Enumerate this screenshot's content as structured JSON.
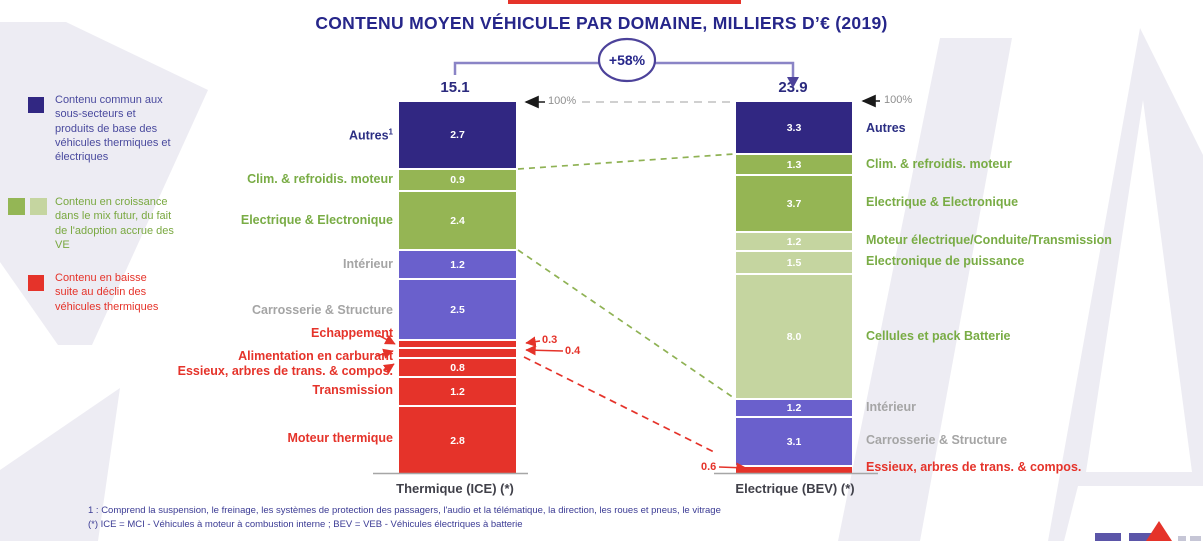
{
  "title": "CONTENU MOYEN VÉHICULE PAR DOMAINE, MILLIERS D’€ (2019)",
  "growth_badge": "+58%",
  "axis_marker": "100%",
  "legend": {
    "items": [
      {
        "colors": [
          "#312782"
        ],
        "text_color": "#4A4A9E",
        "text": "Contenu commun aux sous-secteurs et produits de base des véhicules thermiques et électriques"
      },
      {
        "colors": [
          "#94B655",
          "#C5D5A0"
        ],
        "text_color": "#79A840",
        "text": "Contenu en croissance dans le mix futur, du fait de l'adoption accrue des VE"
      },
      {
        "colors": [
          "#E5332A"
        ],
        "text_color": "#E5332A",
        "text": "Contenu en baisse suite au déclin des véhicules thermiques"
      }
    ]
  },
  "footnotes": [
    "1 : Comprend la suspension, le freinage, les systèmes de protection des passagers, l'audio et la télématique, la direction, les roues et pneus, le vitrage",
    "(*) ICE = MCI - Véhicules à moteur à combustion interne ; BEV = VEB - Véhicules électriques à batterie"
  ],
  "chart_data": {
    "type": "bar",
    "subtype": "stacked-comparison-normalized-100pct",
    "title": "CONTENU MOYEN VÉHICULE PAR DOMAINE, MILLIERS D’€ (2019)",
    "unit": "milliers d'euros",
    "growth_between_bars": "+58%",
    "colors": {
      "common": "#312782",
      "growth": "#95B554",
      "growth_light": "#C5D5A0",
      "neutral": "#6A60CC",
      "decline": "#E5332A"
    },
    "bars": [
      {
        "name": "Thermique (ICE) (*)",
        "total": "15.1",
        "segments": [
          {
            "label": "Autres",
            "footnote": "1",
            "value": 2.7,
            "display": "2.7",
            "type": "common"
          },
          {
            "label": "Clim. & refroidis. moteur",
            "value": 0.9,
            "display": "0.9",
            "type": "growth"
          },
          {
            "label": "Electrique & Electronique",
            "value": 2.4,
            "display": "2.4",
            "type": "growth"
          },
          {
            "label": "Intérieur",
            "value": 1.2,
            "display": "1.2",
            "type": "neutral"
          },
          {
            "label": "Carrosserie & Structure",
            "value": 2.5,
            "display": "2.5",
            "type": "neutral"
          },
          {
            "label": "Echappement",
            "value": 0.3,
            "display": "0.3",
            "type": "decline",
            "value_outside": true
          },
          {
            "label": "Alimentation en carburant",
            "value": 0.4,
            "display": "0.4",
            "type": "decline",
            "value_outside": true
          },
          {
            "label": "Essieux, arbres de trans. & compos.",
            "value": 0.8,
            "display": "0.8",
            "type": "decline"
          },
          {
            "label": "Transmission",
            "value": 1.2,
            "display": "1.2",
            "type": "decline"
          },
          {
            "label": "Moteur thermique",
            "value": 2.8,
            "display": "2.8",
            "type": "decline"
          }
        ]
      },
      {
        "name": "Electrique (BEV) (*)",
        "total": "23.9",
        "segments": [
          {
            "label": "Autres",
            "value": 3.3,
            "display": "3.3",
            "type": "common"
          },
          {
            "label": "Clim. & refroidis. moteur",
            "value": 1.3,
            "display": "1.3",
            "type": "growth"
          },
          {
            "label": "Electrique & Electronique",
            "value": 3.7,
            "display": "3.7",
            "type": "growth"
          },
          {
            "label": "Moteur électrique/Conduite/Transmission",
            "value": 1.2,
            "display": "1.2",
            "type": "growth_light"
          },
          {
            "label": "Electronique de puissance",
            "value": 1.5,
            "display": "1.5",
            "type": "growth_light"
          },
          {
            "label": "Cellules et pack Batterie",
            "value": 8.0,
            "display": "8.0",
            "type": "growth_light"
          },
          {
            "label": "Intérieur",
            "value": 1.2,
            "display": "1.2",
            "type": "neutral"
          },
          {
            "label": "Carrosserie & Structure",
            "value": 3.1,
            "display": "3.1",
            "type": "neutral"
          },
          {
            "label": "Essieux, arbres de trans. & compos.",
            "value": 0.6,
            "display": "0.6",
            "type": "decline",
            "value_outside": true
          }
        ]
      }
    ]
  }
}
